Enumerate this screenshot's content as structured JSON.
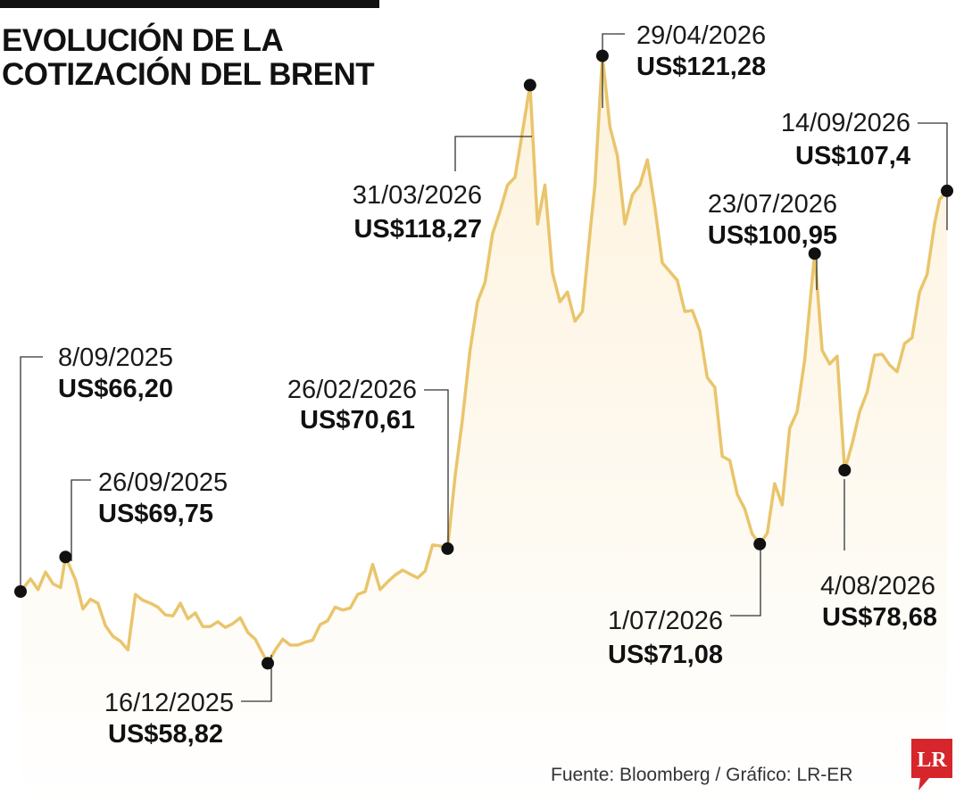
{
  "title_lines": [
    "EVOLUCIÓN DE LA",
    "COTIZACIÓN DEL BRENT"
  ],
  "source": "Fuente: Bloomberg / Gráfico: LR-ER",
  "logo_text": "LR",
  "colors": {
    "line": "#e9c56b",
    "fill_top": "#fdf2dc",
    "fill_bottom": "#ffffff",
    "marker": "#111111",
    "leader": "#333333",
    "logo": "#d6262c"
  },
  "chart_data": {
    "type": "area",
    "title": "EVOLUCIÓN DE LA COTIZACIÓN DEL BRENT",
    "xlabel": "",
    "ylabel": "",
    "grid": false,
    "legend": "none",
    "x_range": [
      "2025-09-08",
      "2026-09-14"
    ],
    "ylim": [
      40,
      125
    ],
    "series": [
      {
        "values": [
          [
            "2025-09-08",
            66.2
          ],
          [
            "2025-09-12",
            67.5
          ],
          [
            "2025-09-15",
            66.4
          ],
          [
            "2025-09-18",
            68.2
          ],
          [
            "2025-09-21",
            67.0
          ],
          [
            "2025-09-24",
            66.6
          ],
          [
            "2025-09-26",
            69.75
          ],
          [
            "2025-09-30",
            67.4
          ],
          [
            "2025-10-03",
            64.4
          ],
          [
            "2025-10-06",
            65.4
          ],
          [
            "2025-10-09",
            65.0
          ],
          [
            "2025-10-12",
            62.7
          ],
          [
            "2025-10-15",
            61.6
          ],
          [
            "2025-10-18",
            61.1
          ],
          [
            "2025-10-21",
            60.2
          ],
          [
            "2025-10-24",
            65.9
          ],
          [
            "2025-10-27",
            65.3
          ],
          [
            "2025-10-30",
            65.0
          ],
          [
            "2025-11-02",
            64.6
          ],
          [
            "2025-11-05",
            63.8
          ],
          [
            "2025-11-08",
            63.7
          ],
          [
            "2025-11-11",
            65.0
          ],
          [
            "2025-11-14",
            63.4
          ],
          [
            "2025-11-17",
            64.0
          ],
          [
            "2025-11-20",
            62.6
          ],
          [
            "2025-11-23",
            62.6
          ],
          [
            "2025-11-26",
            63.1
          ],
          [
            "2025-11-29",
            62.5
          ],
          [
            "2025-12-02",
            62.9
          ],
          [
            "2025-12-05",
            63.5
          ],
          [
            "2025-12-08",
            62.0
          ],
          [
            "2025-12-11",
            61.3
          ],
          [
            "2025-12-16",
            58.82
          ],
          [
            "2025-12-19",
            60.2
          ],
          [
            "2025-12-22",
            61.3
          ],
          [
            "2025-12-25",
            60.7
          ],
          [
            "2025-12-28",
            60.7
          ],
          [
            "2025-12-31",
            61.0
          ],
          [
            "2026-01-03",
            61.2
          ],
          [
            "2026-01-06",
            62.8
          ],
          [
            "2026-01-09",
            63.2
          ],
          [
            "2026-01-12",
            64.6
          ],
          [
            "2026-01-15",
            64.3
          ],
          [
            "2026-01-18",
            64.5
          ],
          [
            "2026-01-21",
            65.9
          ],
          [
            "2026-01-24",
            66.2
          ],
          [
            "2026-01-27",
            69.0
          ],
          [
            "2026-01-30",
            66.4
          ],
          [
            "2026-02-02",
            67.2
          ],
          [
            "2026-02-05",
            67.9
          ],
          [
            "2026-02-08",
            68.4
          ],
          [
            "2026-02-11",
            68.0
          ],
          [
            "2026-02-14",
            67.6
          ],
          [
            "2026-02-17",
            68.3
          ],
          [
            "2026-02-20",
            71.0
          ],
          [
            "2026-02-23",
            70.9
          ],
          [
            "2026-02-26",
            70.61
          ],
          [
            "2026-03-01",
            78.0
          ],
          [
            "2026-03-04",
            84.0
          ],
          [
            "2026-03-07",
            91.0
          ],
          [
            "2026-03-10",
            96.0
          ],
          [
            "2026-03-13",
            98.0
          ],
          [
            "2026-03-16",
            103.0
          ],
          [
            "2026-03-19",
            105.3
          ],
          [
            "2026-03-22",
            108.0
          ],
          [
            "2026-03-25",
            108.8
          ],
          [
            "2026-03-28",
            113.5
          ],
          [
            "2026-03-31",
            118.27
          ],
          [
            "2026-04-03",
            104.0
          ],
          [
            "2026-04-06",
            108.0
          ],
          [
            "2026-04-09",
            99.0
          ],
          [
            "2026-04-12",
            96.0
          ],
          [
            "2026-04-15",
            97.0
          ],
          [
            "2026-04-18",
            94.0
          ],
          [
            "2026-04-21",
            95.0
          ],
          [
            "2026-04-24",
            103.0
          ],
          [
            "2026-04-26",
            108.0
          ],
          [
            "2026-04-29",
            121.28
          ],
          [
            "2026-05-02",
            114.0
          ],
          [
            "2026-05-05",
            111.0
          ],
          [
            "2026-05-08",
            104.0
          ],
          [
            "2026-05-11",
            107.0
          ],
          [
            "2026-05-14",
            108.0
          ],
          [
            "2026-05-17",
            110.6
          ],
          [
            "2026-05-20",
            105.7
          ],
          [
            "2026-05-23",
            100.0
          ],
          [
            "2026-05-26",
            99.1
          ],
          [
            "2026-05-29",
            98.2
          ],
          [
            "2026-06-01",
            95.0
          ],
          [
            "2026-06-04",
            95.1
          ],
          [
            "2026-06-07",
            93.0
          ],
          [
            "2026-06-10",
            88.2
          ],
          [
            "2026-06-13",
            87.2
          ],
          [
            "2026-06-16",
            80.1
          ],
          [
            "2026-06-19",
            79.7
          ],
          [
            "2026-06-22",
            76.2
          ],
          [
            "2026-06-25",
            74.7
          ],
          [
            "2026-06-28",
            72.1
          ],
          [
            "2026-07-01",
            71.08
          ],
          [
            "2026-07-04",
            72.2
          ],
          [
            "2026-07-07",
            77.3
          ],
          [
            "2026-07-10",
            75.1
          ],
          [
            "2026-07-13",
            83.0
          ],
          [
            "2026-07-16",
            84.7
          ],
          [
            "2026-07-19",
            90.0
          ],
          [
            "2026-07-23",
            100.95
          ],
          [
            "2026-07-26",
            91.0
          ],
          [
            "2026-07-29",
            89.6
          ],
          [
            "2026-08-01",
            90.4
          ],
          [
            "2026-08-04",
            78.68
          ],
          [
            "2026-08-07",
            81.4
          ],
          [
            "2026-08-10",
            84.7
          ],
          [
            "2026-08-13",
            86.7
          ],
          [
            "2026-08-16",
            90.5
          ],
          [
            "2026-08-19",
            90.6
          ],
          [
            "2026-08-22",
            89.5
          ],
          [
            "2026-08-25",
            88.8
          ],
          [
            "2026-08-28",
            91.7
          ],
          [
            "2026-08-31",
            92.3
          ],
          [
            "2026-09-03",
            97.0
          ],
          [
            "2026-09-06",
            98.8
          ],
          [
            "2026-09-09",
            104.0
          ],
          [
            "2026-09-11",
            106.5
          ],
          [
            "2026-09-14",
            107.4
          ]
        ]
      }
    ],
    "annotations": [
      {
        "date": "8/09/2025",
        "label": "US$66,20",
        "x": "2025-09-08",
        "y": 66.2
      },
      {
        "date": "26/09/2025",
        "label": "US$69,75",
        "x": "2025-09-26",
        "y": 69.75
      },
      {
        "date": "16/12/2025",
        "label": "US$58,82",
        "x": "2025-12-16",
        "y": 58.82
      },
      {
        "date": "26/02/2026",
        "label": "US$70,61",
        "x": "2026-02-26",
        "y": 70.61
      },
      {
        "date": "31/03/2026",
        "label": "US$118,27",
        "x": "2026-03-31",
        "y": 118.27
      },
      {
        "date": "29/04/2026",
        "label": "US$121,28",
        "x": "2026-04-29",
        "y": 121.28
      },
      {
        "date": "1/07/2026",
        "label": "US$71,08",
        "x": "2026-07-01",
        "y": 71.08
      },
      {
        "date": "23/07/2026",
        "label": "US$100,95",
        "x": "2026-07-23",
        "y": 100.95
      },
      {
        "date": "4/08/2026",
        "label": "US$78,68",
        "x": "2026-08-04",
        "y": 78.68
      },
      {
        "date": "14/09/2026",
        "label": "US$107,4",
        "x": "2026-09-14",
        "y": 107.4
      }
    ]
  }
}
